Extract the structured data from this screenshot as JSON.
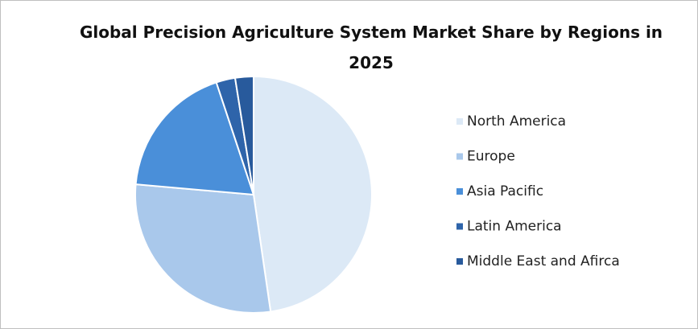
{
  "chart_data": {
    "type": "pie",
    "title": "Global Precision Agriculture System Market Share by Regions in 2025",
    "categories": [
      "North America",
      "Europe",
      "Asia Pacific",
      "Latin America",
      "Middle East and Afirca"
    ],
    "values": [
      47.7,
      28.7,
      18.5,
      2.6,
      2.5
    ],
    "colors": [
      "#dce9f6",
      "#a9c8eb",
      "#4a8fd9",
      "#2e64aa",
      "#285a9c"
    ],
    "legend": "right"
  }
}
